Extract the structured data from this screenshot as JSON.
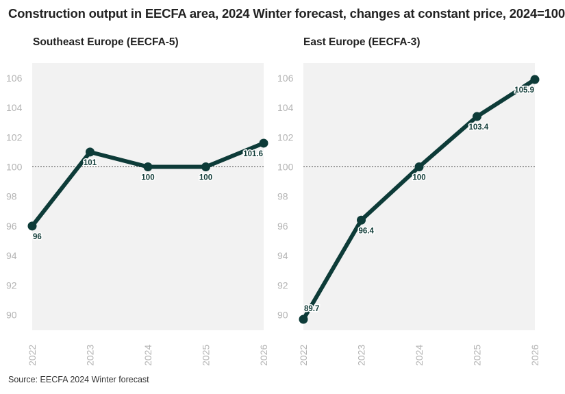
{
  "title": "Construction output in EECFA area, 2024 Winter forecast, changes at constant price, 2024=100",
  "source": "Source: EECFA 2024 Winter forecast",
  "colors": {
    "line": "#0d3b38",
    "plot_bg": "#f2f2f2",
    "reference_line": "#444444",
    "tick_text": "#b3b3b3"
  },
  "chart_data": [
    {
      "type": "line",
      "title": "Southeast Europe (EECFA-5)",
      "x": [
        "2022",
        "2023",
        "2024",
        "2025",
        "2026"
      ],
      "values": [
        96,
        101,
        100,
        100,
        101.6
      ],
      "data_labels": [
        "96",
        "101",
        "100",
        "100",
        "101.6"
      ],
      "yticks": [
        "90",
        "92",
        "94",
        "96",
        "98",
        "100",
        "102",
        "104",
        "106"
      ],
      "ylim": [
        88.6,
        107
      ],
      "reference_line": 100,
      "grid": false
    },
    {
      "type": "line",
      "title": "East Europe (EECFA-3)",
      "x": [
        "2022",
        "2023",
        "2024",
        "2025",
        "2026"
      ],
      "values": [
        89.7,
        96.4,
        100,
        103.4,
        105.9
      ],
      "data_labels": [
        "89.7",
        "96.4",
        "100",
        "103.4",
        "105.9"
      ],
      "yticks": [
        "90",
        "92",
        "94",
        "96",
        "98",
        "100",
        "102",
        "104",
        "106"
      ],
      "ylim": [
        88.6,
        107
      ],
      "reference_line": 100,
      "grid": false
    }
  ]
}
